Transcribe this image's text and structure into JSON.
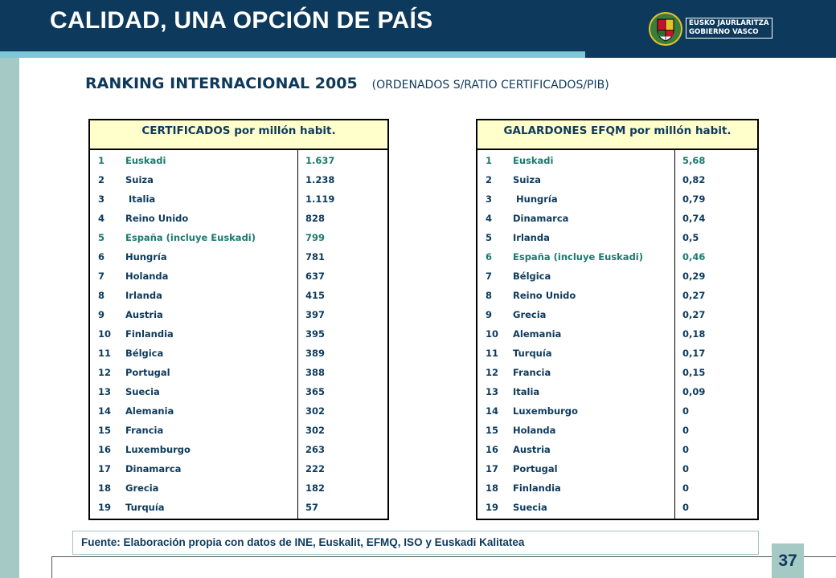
{
  "header": {
    "title": "CALIDAD, UNA OPCIÓN DE PAÍS",
    "logo_icon": "basque-government-shield-icon",
    "logo_line1": "EUSKO JAURLARITZA",
    "logo_line2": "GOBIERNO VASCO"
  },
  "subtitle": {
    "main": "RANKING INTERNACIONAL 2005",
    "note": "(ORDENADOS S/RATIO CERTIFICADOS/PIB)"
  },
  "colors": {
    "navy": "#0d3a5c",
    "teal_strip": "#7fc6d6",
    "sidebar": "#a5c9c4",
    "header_fill": "#ffffcc",
    "highlight": "#1a7a6e"
  },
  "certificados": {
    "title": "CERTIFICADOS por millón habit.",
    "rows": [
      {
        "rank": "1",
        "country": "Euskadi",
        "value": "1.637",
        "highlight": true
      },
      {
        "rank": "2",
        "country": "Suiza",
        "value": "1.238",
        "highlight": false
      },
      {
        "rank": "3",
        "country": " Italia",
        "value": "1.119",
        "highlight": false
      },
      {
        "rank": "4",
        "country": "Reino Unido",
        "value": "828",
        "highlight": false
      },
      {
        "rank": "5",
        "country": "España (incluye Euskadi)",
        "value": "799",
        "highlight": true
      },
      {
        "rank": "6",
        "country": "Hungría",
        "value": "781",
        "highlight": false
      },
      {
        "rank": "7",
        "country": "Holanda",
        "value": "637",
        "highlight": false
      },
      {
        "rank": "8",
        "country": "Irlanda",
        "value": "415",
        "highlight": false
      },
      {
        "rank": "9",
        "country": "Austria",
        "value": "397",
        "highlight": false
      },
      {
        "rank": "10",
        "country": "Finlandia",
        "value": "395",
        "highlight": false
      },
      {
        "rank": "11",
        "country": "Bélgica",
        "value": "389",
        "highlight": false
      },
      {
        "rank": "12",
        "country": "Portugal",
        "value": "388",
        "highlight": false
      },
      {
        "rank": "13",
        "country": "Suecia",
        "value": "365",
        "highlight": false
      },
      {
        "rank": "14",
        "country": "Alemania",
        "value": "302",
        "highlight": false
      },
      {
        "rank": "15",
        "country": "Francia",
        "value": "302",
        "highlight": false
      },
      {
        "rank": "16",
        "country": "Luxemburgo",
        "value": "263",
        "highlight": false
      },
      {
        "rank": "17",
        "country": "Dinamarca",
        "value": "222",
        "highlight": false
      },
      {
        "rank": "18",
        "country": "Grecia",
        "value": "182",
        "highlight": false
      },
      {
        "rank": "19",
        "country": "Turquía",
        "value": "57",
        "highlight": false
      }
    ]
  },
  "galardones": {
    "title": "GALARDONES EFQM por millón habit.",
    "rows": [
      {
        "rank": "1",
        "country": "Euskadi",
        "value": "5,68",
        "highlight": true
      },
      {
        "rank": "2",
        "country": "Suiza",
        "value": "0,82",
        "highlight": false
      },
      {
        "rank": "3",
        "country": " Hungría",
        "value": "0,79",
        "highlight": false
      },
      {
        "rank": "4",
        "country": "Dinamarca",
        "value": "0,74",
        "highlight": false
      },
      {
        "rank": "5",
        "country": "Irlanda",
        "value": "0,5",
        "highlight": false
      },
      {
        "rank": "6",
        "country": "España (incluye Euskadi)",
        "value": "0,46",
        "highlight": true
      },
      {
        "rank": "7",
        "country": "Bélgica",
        "value": "0,29",
        "highlight": false
      },
      {
        "rank": "8",
        "country": "Reino Unido",
        "value": "0,27",
        "highlight": false
      },
      {
        "rank": "9",
        "country": "Grecia",
        "value": "0,27",
        "highlight": false
      },
      {
        "rank": "10",
        "country": "Alemania",
        "value": "0,18",
        "highlight": false
      },
      {
        "rank": "11",
        "country": "Turquía",
        "value": "0,17",
        "highlight": false
      },
      {
        "rank": "12",
        "country": "Francia",
        "value": "0,15",
        "highlight": false
      },
      {
        "rank": "13",
        "country": "Italia",
        "value": "0,09",
        "highlight": false
      },
      {
        "rank": "14",
        "country": "Luxemburgo",
        "value": "0",
        "highlight": false
      },
      {
        "rank": "15",
        "country": "Holanda",
        "value": "0",
        "highlight": false
      },
      {
        "rank": "16",
        "country": "Austria",
        "value": "0",
        "highlight": false
      },
      {
        "rank": "17",
        "country": "Portugal",
        "value": "0",
        "highlight": false
      },
      {
        "rank": "18",
        "country": "Finlandia",
        "value": "0",
        "highlight": false
      },
      {
        "rank": "19",
        "country": "Suecia",
        "value": "0",
        "highlight": false
      }
    ]
  },
  "footer": {
    "source": "Fuente: Elaboración propia con datos de INE, Euskalit, EFMQ, ISO y Euskadi Kalitatea",
    "page_number": "37"
  }
}
